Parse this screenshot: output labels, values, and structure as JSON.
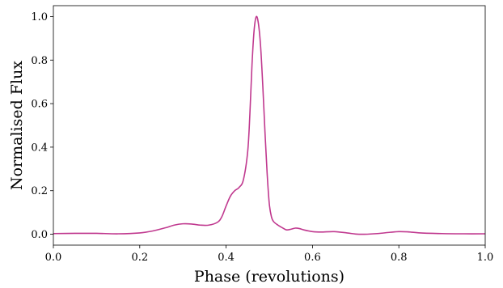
{
  "chart_data": {
    "type": "line",
    "xlabel": "Phase (revolutions)",
    "ylabel": "Normalised Flux",
    "xlim": [
      0.0,
      1.0
    ],
    "ylim": [
      -0.05,
      1.05
    ],
    "xticks": [
      0.0,
      0.2,
      0.4,
      0.6,
      0.8,
      1.0
    ],
    "xtick_labels": [
      "0.0",
      "0.2",
      "0.4",
      "0.6",
      "0.8",
      "1.0"
    ],
    "yticks": [
      0.0,
      0.2,
      0.4,
      0.6,
      0.8,
      1.0
    ],
    "ytick_labels": [
      "0.0",
      "0.2",
      "0.4",
      "0.6",
      "0.8",
      "1.0"
    ],
    "grid": false,
    "series": [
      {
        "color": "#c0398f",
        "x": [
          0.0,
          0.05,
          0.1,
          0.15,
          0.2,
          0.23,
          0.26,
          0.28,
          0.3,
          0.32,
          0.34,
          0.36,
          0.38,
          0.39,
          0.4,
          0.41,
          0.42,
          0.43,
          0.44,
          0.45,
          0.455,
          0.46,
          0.465,
          0.47,
          0.475,
          0.48,
          0.485,
          0.49,
          0.495,
          0.5,
          0.505,
          0.51,
          0.52,
          0.53,
          0.54,
          0.55,
          0.56,
          0.57,
          0.58,
          0.6,
          0.62,
          0.65,
          0.68,
          0.7,
          0.72,
          0.75,
          0.78,
          0.8,
          0.82,
          0.85,
          0.9,
          0.95,
          1.0
        ],
        "y": [
          0.003,
          0.004,
          0.004,
          0.002,
          0.006,
          0.015,
          0.03,
          0.042,
          0.048,
          0.047,
          0.042,
          0.042,
          0.055,
          0.08,
          0.13,
          0.175,
          0.2,
          0.215,
          0.25,
          0.38,
          0.55,
          0.78,
          0.94,
          1.0,
          0.965,
          0.86,
          0.68,
          0.47,
          0.28,
          0.14,
          0.08,
          0.058,
          0.042,
          0.03,
          0.02,
          0.023,
          0.028,
          0.026,
          0.02,
          0.012,
          0.01,
          0.012,
          0.006,
          0.001,
          0.0,
          0.003,
          0.009,
          0.012,
          0.011,
          0.006,
          0.003,
          0.002,
          0.002
        ]
      }
    ]
  }
}
